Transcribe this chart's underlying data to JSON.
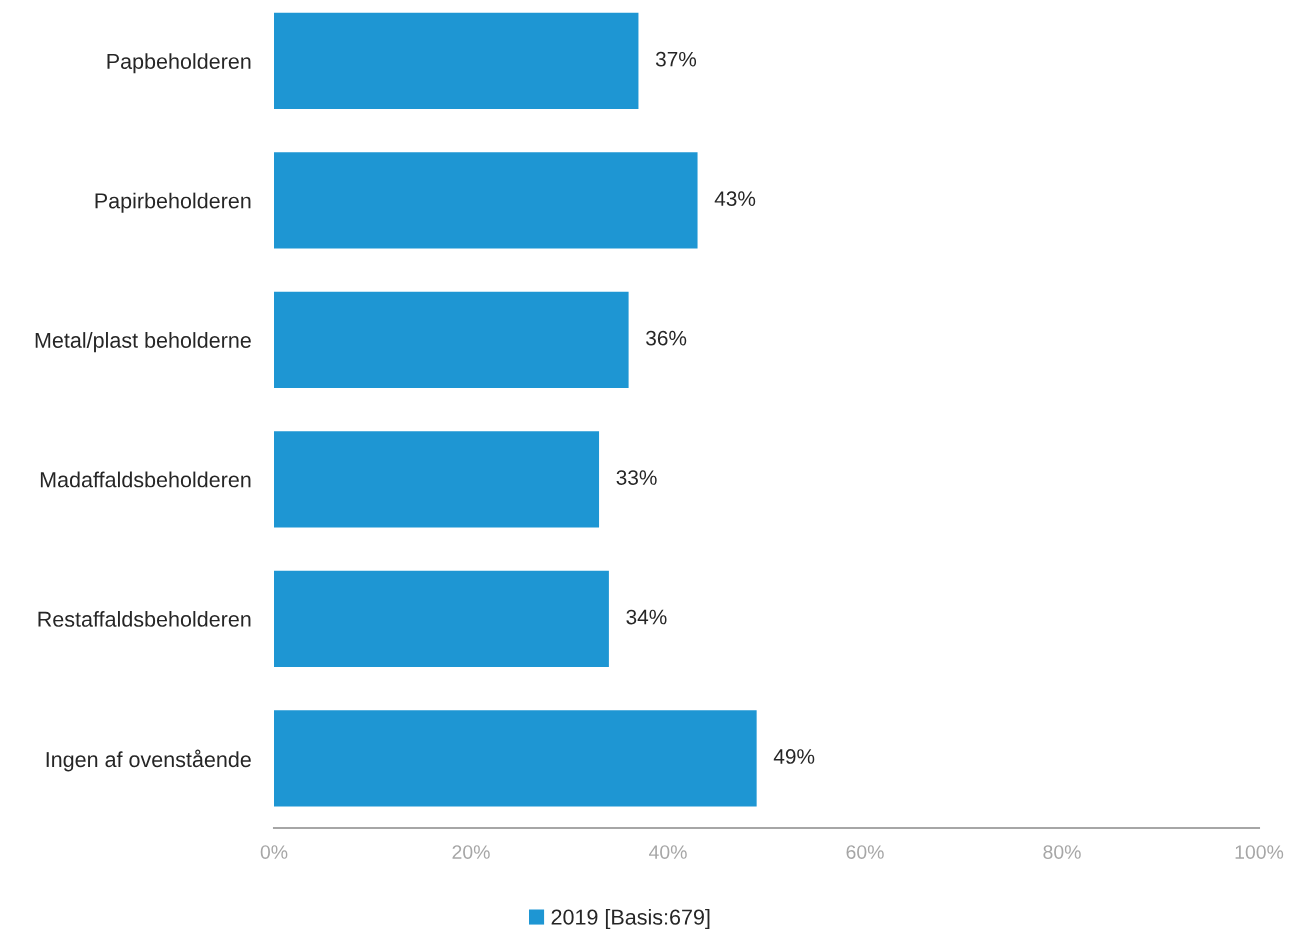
{
  "chart_data": {
    "type": "bar",
    "orientation": "horizontal",
    "categories": [
      "Papbeholderen",
      "Papirbeholderen",
      "Metal/plast beholderne",
      "Madaffaldsbeholderen",
      "Restaffaldsbeholderen",
      "Ingen af ovenstående"
    ],
    "series": [
      {
        "name": "2019 [Basis:679]",
        "color": "#1e96d3",
        "values": [
          37,
          43,
          36,
          33,
          34,
          49
        ],
        "value_labels": [
          "37%",
          "43%",
          "36%",
          "33%",
          "34%",
          "49%"
        ]
      }
    ],
    "xlim": [
      0,
      100
    ],
    "xticks": [
      {
        "value": 0,
        "label": "0%"
      },
      {
        "value": 20,
        "label": "20%"
      },
      {
        "value": 40,
        "label": "40%"
      },
      {
        "value": 60,
        "label": "60%"
      },
      {
        "value": 80,
        "label": "80%"
      },
      {
        "value": 100,
        "label": "100%"
      }
    ],
    "grid": false,
    "legend": "bottom"
  }
}
